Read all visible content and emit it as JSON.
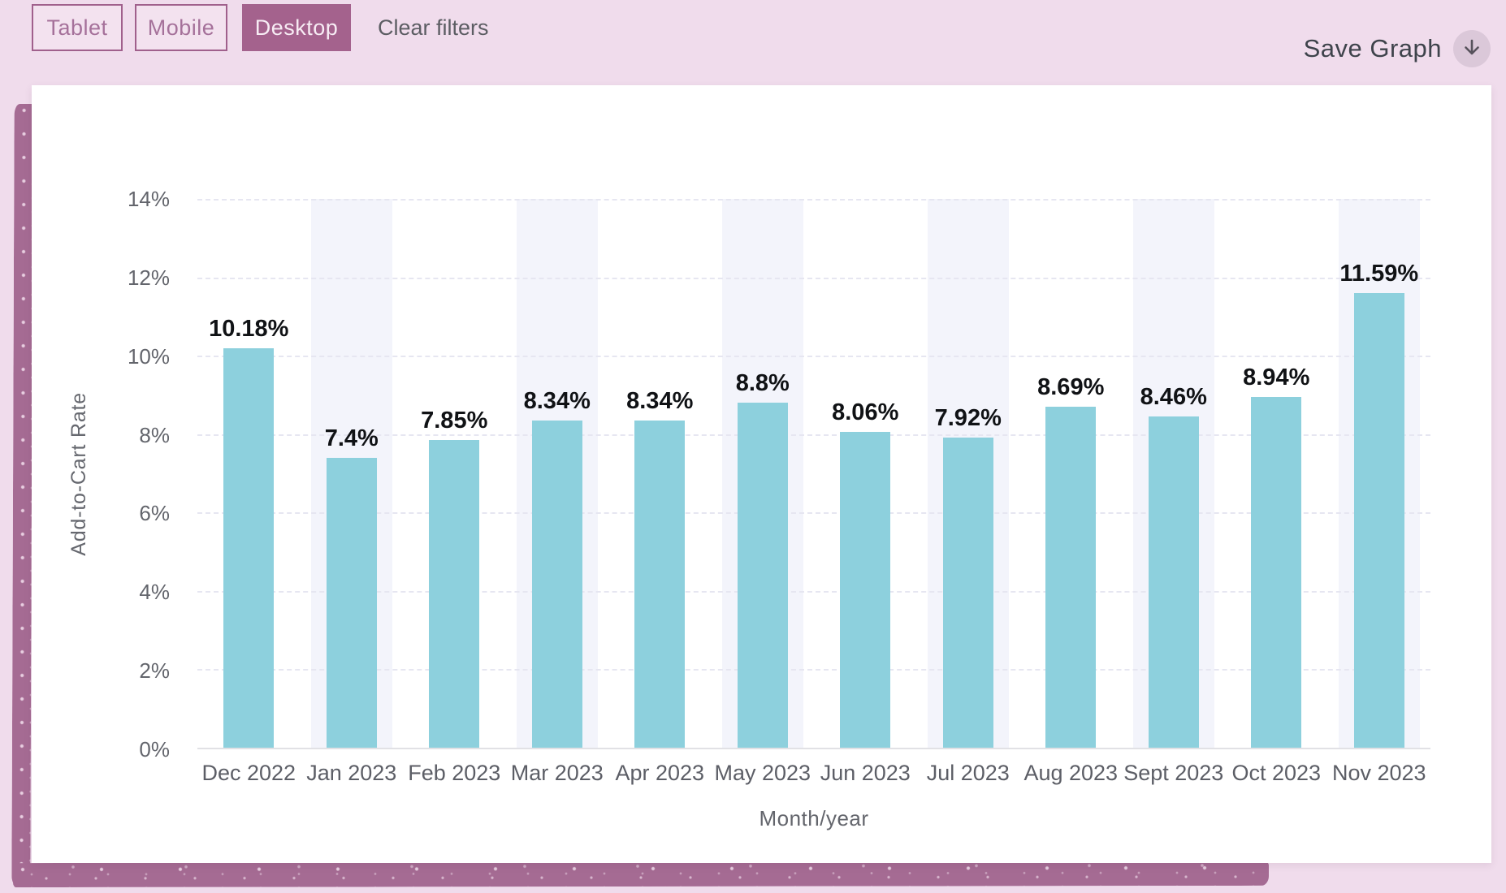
{
  "toolbar": {
    "filters": [
      {
        "label": "Tablet",
        "active": false
      },
      {
        "label": "Mobile",
        "active": false
      },
      {
        "label": "Desktop",
        "active": true
      }
    ],
    "clear_filters_label": "Clear filters",
    "save_graph_label": "Save Graph"
  },
  "colors": {
    "page_background": "#f0dcec",
    "accent_purple": "#a4628d",
    "brush_purple": "#a56b93",
    "bar_fill": "#8dd0dd",
    "column_band": "#f3f4fb",
    "gridline": "#e6e6f1",
    "save_circle": "#dbc8d9"
  },
  "chart_data": {
    "type": "bar",
    "title": "",
    "xlabel": "Month/year",
    "ylabel": "Add-to-Cart Rate",
    "categories": [
      "Dec 2022",
      "Jan 2023",
      "Feb 2023",
      "Mar 2023",
      "Apr 2023",
      "May 2023",
      "Jun 2023",
      "Jul 2023",
      "Aug 2023",
      "Sept 2023",
      "Oct 2023",
      "Nov 2023"
    ],
    "values": [
      10.18,
      7.4,
      7.85,
      8.34,
      8.34,
      8.8,
      8.06,
      7.92,
      8.69,
      8.46,
      8.94,
      11.59
    ],
    "labels": [
      "10.18%",
      "7.4%",
      "7.85%",
      "8.34%",
      "8.34%",
      "8.8%",
      "8.06%",
      "7.92%",
      "8.69%",
      "8.46%",
      "8.94%",
      "11.59%"
    ],
    "ylim": [
      0,
      14
    ],
    "yticks": [
      "0%",
      "2%",
      "4%",
      "6%",
      "8%",
      "10%",
      "12%",
      "14%"
    ],
    "ytick_values": [
      0,
      2,
      4,
      6,
      8,
      10,
      12,
      14
    ],
    "grid": "horizontal dashed",
    "legend": "none",
    "striped_columns": "alternating light bands behind every second month starting Jan 2023"
  }
}
